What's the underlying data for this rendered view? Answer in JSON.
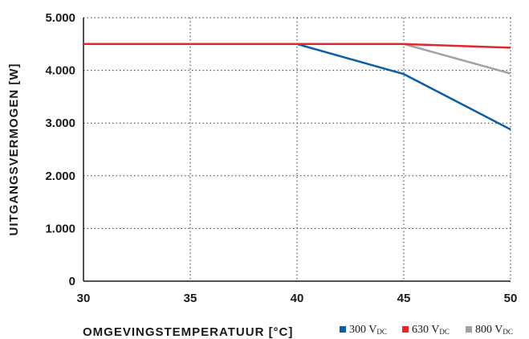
{
  "chart_data": {
    "type": "line",
    "xlabel": "OMGEVINGSTEMPERATUUR [°C]",
    "ylabel": "UITGANGSVERMOGEN [W]",
    "xlim": [
      30,
      50
    ],
    "ylim": [
      0,
      5000
    ],
    "x_ticks": [
      30,
      35,
      40,
      45,
      50
    ],
    "x_tick_labels": [
      "30",
      "35",
      "40",
      "45",
      "50"
    ],
    "y_ticks": [
      0,
      1000,
      2000,
      3000,
      4000,
      5000
    ],
    "y_tick_labels": [
      "0",
      "1.000",
      "2.000",
      "3.000",
      "4.000",
      "5.000"
    ],
    "grid": true,
    "legend_position": "bottom-right",
    "series": [
      {
        "name": "300 V",
        "name_sub": "DC",
        "color": "#0a5ea8",
        "x": [
          30,
          40,
          45,
          50
        ],
        "y": [
          4500,
          4500,
          3930,
          2880
        ]
      },
      {
        "name": "630 V",
        "name_sub": "DC",
        "color": "#e3262b",
        "x": [
          30,
          45,
          50
        ],
        "y": [
          4500,
          4500,
          4430
        ]
      },
      {
        "name": "800 V",
        "name_sub": "DC",
        "color": "#9ea3a7",
        "x": [
          30,
          45,
          50
        ],
        "y": [
          4500,
          4500,
          3940
        ]
      }
    ]
  }
}
